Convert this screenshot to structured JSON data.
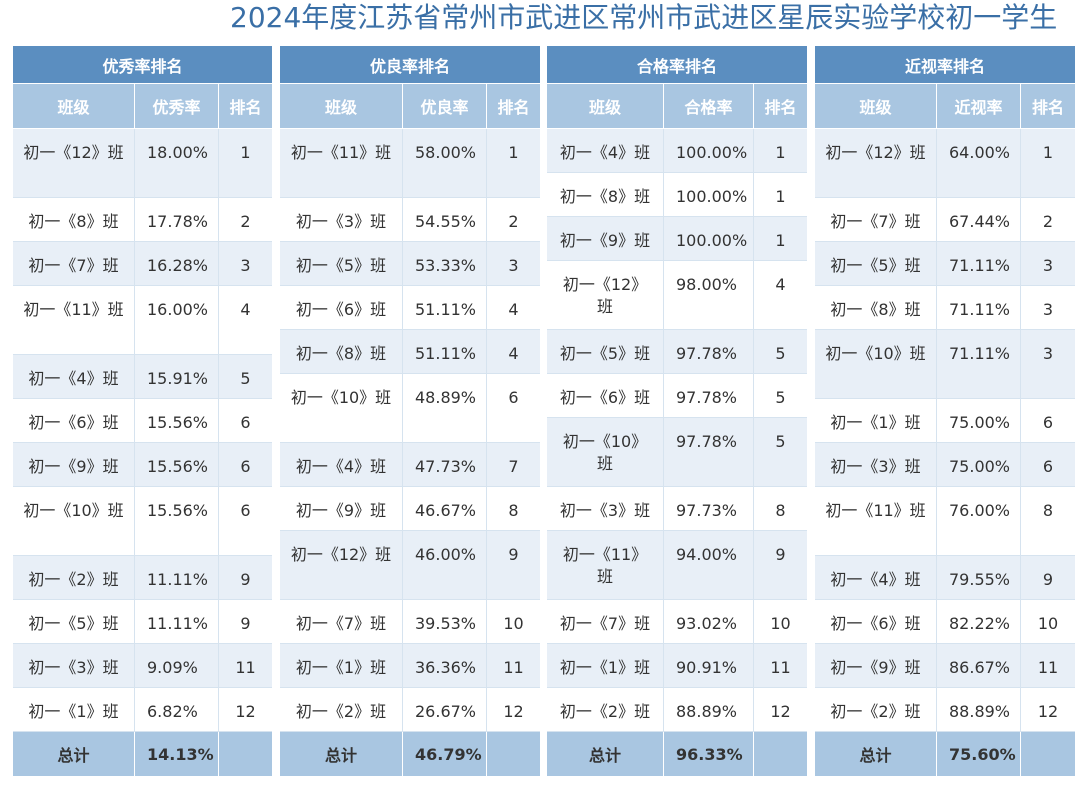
{
  "title": "2024年度江苏省常州市武进区常州市武进区星辰实验学校初一学生",
  "panels": [
    {
      "heading": "优秀率排名",
      "columns": [
        "班级",
        "优秀率",
        "排名"
      ],
      "rows": [
        {
          "cls": "初一《12》班",
          "rate": "18.00%",
          "rank": "1"
        },
        {
          "cls": "初一《8》班",
          "rate": "17.78%",
          "rank": "2"
        },
        {
          "cls": "初一《7》班",
          "rate": "16.28%",
          "rank": "3"
        },
        {
          "cls": "初一《11》班",
          "rate": "16.00%",
          "rank": "4"
        },
        {
          "cls": "初一《4》班",
          "rate": "15.91%",
          "rank": "5"
        },
        {
          "cls": "初一《6》班",
          "rate": "15.56%",
          "rank": "6"
        },
        {
          "cls": "初一《9》班",
          "rate": "15.56%",
          "rank": "6"
        },
        {
          "cls": "初一《10》班",
          "rate": "15.56%",
          "rank": "6"
        },
        {
          "cls": "初一《2》班",
          "rate": "11.11%",
          "rank": "9"
        },
        {
          "cls": "初一《5》班",
          "rate": "11.11%",
          "rank": "9"
        },
        {
          "cls": "初一《3》班",
          "rate": "9.09%",
          "rank": "11"
        },
        {
          "cls": "初一《1》班",
          "rate": "6.82%",
          "rank": "12"
        }
      ],
      "total_label": "总计",
      "total_value": "14.13%"
    },
    {
      "heading": "优良率排名",
      "columns": [
        "班级",
        "优良率",
        "排名"
      ],
      "rows": [
        {
          "cls": "初一《11》班",
          "rate": "58.00%",
          "rank": "1"
        },
        {
          "cls": "初一《3》班",
          "rate": "54.55%",
          "rank": "2"
        },
        {
          "cls": "初一《5》班",
          "rate": "53.33%",
          "rank": "3"
        },
        {
          "cls": "初一《6》班",
          "rate": "51.11%",
          "rank": "4"
        },
        {
          "cls": "初一《8》班",
          "rate": "51.11%",
          "rank": "4"
        },
        {
          "cls": "初一《10》班",
          "rate": "48.89%",
          "rank": "6"
        },
        {
          "cls": "初一《4》班",
          "rate": "47.73%",
          "rank": "7"
        },
        {
          "cls": "初一《9》班",
          "rate": "46.67%",
          "rank": "8"
        },
        {
          "cls": "初一《12》班",
          "rate": "46.00%",
          "rank": "9"
        },
        {
          "cls": "初一《7》班",
          "rate": "39.53%",
          "rank": "10"
        },
        {
          "cls": "初一《1》班",
          "rate": "36.36%",
          "rank": "11"
        },
        {
          "cls": "初一《2》班",
          "rate": "26.67%",
          "rank": "12"
        }
      ],
      "total_label": "总计",
      "total_value": "46.79%"
    },
    {
      "heading": "合格率排名",
      "columns": [
        "班级",
        "合格率",
        "排名"
      ],
      "rows": [
        {
          "cls": "初一《4》班",
          "rate": "100.00%",
          "rank": "1"
        },
        {
          "cls": "初一《8》班",
          "rate": "100.00%",
          "rank": "1"
        },
        {
          "cls": "初一《9》班",
          "rate": "100.00%",
          "rank": "1"
        },
        {
          "cls": "初一《12》班",
          "rate": "98.00%",
          "rank": "4"
        },
        {
          "cls": "初一《5》班",
          "rate": "97.78%",
          "rank": "5"
        },
        {
          "cls": "初一《6》班",
          "rate": "97.78%",
          "rank": "5"
        },
        {
          "cls": "初一《10》班",
          "rate": "97.78%",
          "rank": "5"
        },
        {
          "cls": "初一《3》班",
          "rate": "97.73%",
          "rank": "8"
        },
        {
          "cls": "初一《11》班",
          "rate": "94.00%",
          "rank": "9"
        },
        {
          "cls": "初一《7》班",
          "rate": "93.02%",
          "rank": "10"
        },
        {
          "cls": "初一《1》班",
          "rate": "90.91%",
          "rank": "11"
        },
        {
          "cls": "初一《2》班",
          "rate": "88.89%",
          "rank": "12"
        }
      ],
      "total_label": "总计",
      "total_value": "96.33%"
    },
    {
      "heading": "近视率排名",
      "columns": [
        "班级",
        "近视率",
        "排名"
      ],
      "rows": [
        {
          "cls": "初一《12》班",
          "rate": "64.00%",
          "rank": "1"
        },
        {
          "cls": "初一《7》班",
          "rate": "67.44%",
          "rank": "2"
        },
        {
          "cls": "初一《5》班",
          "rate": "71.11%",
          "rank": "3"
        },
        {
          "cls": "初一《8》班",
          "rate": "71.11%",
          "rank": "3"
        },
        {
          "cls": "初一《10》班",
          "rate": "71.11%",
          "rank": "3"
        },
        {
          "cls": "初一《1》班",
          "rate": "75.00%",
          "rank": "6"
        },
        {
          "cls": "初一《3》班",
          "rate": "75.00%",
          "rank": "6"
        },
        {
          "cls": "初一《11》班",
          "rate": "76.00%",
          "rank": "8"
        },
        {
          "cls": "初一《4》班",
          "rate": "79.55%",
          "rank": "9"
        },
        {
          "cls": "初一《6》班",
          "rate": "82.22%",
          "rank": "10"
        },
        {
          "cls": "初一《9》班",
          "rate": "86.67%",
          "rank": "11"
        },
        {
          "cls": "初一《2》班",
          "rate": "88.89%",
          "rank": "12"
        }
      ],
      "total_label": "总计",
      "total_value": "75.60%"
    }
  ]
}
